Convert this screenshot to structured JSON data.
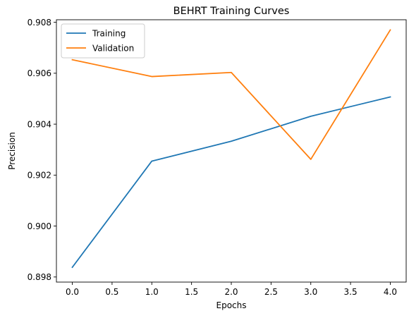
{
  "chart_data": {
    "type": "line",
    "title": "BEHRT Training Curves",
    "xlabel": "Epochs",
    "ylabel": "Precision",
    "x": [
      0,
      1,
      2,
      3,
      4
    ],
    "series": [
      {
        "name": "Training",
        "color": "#1f77b4",
        "values": [
          0.89838,
          0.90255,
          0.90333,
          0.90431,
          0.90507
        ]
      },
      {
        "name": "Validation",
        "color": "#ff7f0e",
        "values": [
          0.90653,
          0.90587,
          0.90603,
          0.90262,
          0.9077
        ]
      }
    ],
    "xlim": [
      -0.2,
      4.2
    ],
    "ylim": [
      0.8978,
      0.9081
    ],
    "xticks": [
      0.0,
      0.5,
      1.0,
      1.5,
      2.0,
      2.5,
      3.0,
      3.5,
      4.0
    ],
    "xtick_labels": [
      "0.0",
      "0.5",
      "1.0",
      "1.5",
      "2.0",
      "2.5",
      "3.0",
      "3.5",
      "4.0"
    ],
    "yticks": [
      0.898,
      0.9,
      0.902,
      0.904,
      0.906,
      0.908
    ],
    "ytick_labels": [
      "0.898",
      "0.900",
      "0.902",
      "0.904",
      "0.906",
      "0.908"
    ],
    "grid": false,
    "legend_position": "upper-left"
  }
}
